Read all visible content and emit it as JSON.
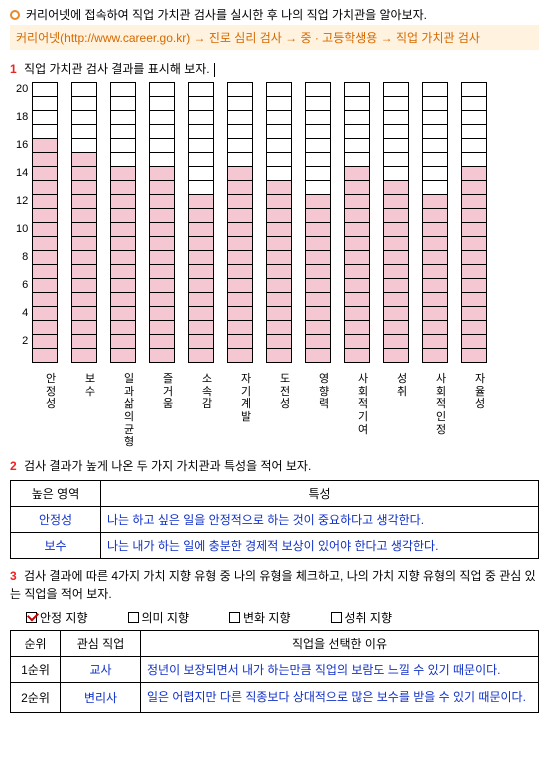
{
  "header": {
    "line1": "커리어넷에 접속하여 직업 가치관 검사를 실시한 후 나의 직업 가치관을 알아보자.",
    "path": "커리어넷(http://www.career.go.kr) → 진로 심리 검사 → 중 · 고등학생용 → 직업 가치관 검사"
  },
  "section1": {
    "num": "1",
    "title": "직업 가치관 검사 결과를 표시해 보자."
  },
  "chart": {
    "type": "bar",
    "ymax": 20,
    "yticks": [
      "20",
      "18",
      "16",
      "14",
      "12",
      "10",
      "8",
      "6",
      "4",
      "2"
    ],
    "bar_fill_color": "#f5c7d3",
    "bar_border_color": "#000000",
    "bars": [
      {
        "label": "안정성",
        "value": 16
      },
      {
        "label": "보수",
        "value": 15
      },
      {
        "label": "일과  삶의  균형",
        "value": 14
      },
      {
        "label": "즐거움",
        "value": 14
      },
      {
        "label": "소속감",
        "value": 12
      },
      {
        "label": "자기계발",
        "value": 14
      },
      {
        "label": "도전성",
        "value": 13
      },
      {
        "label": "영향력",
        "value": 12
      },
      {
        "label": "사회적기여",
        "value": 14
      },
      {
        "label": "성취",
        "value": 13
      },
      {
        "label": "사회적인정",
        "value": 12
      },
      {
        "label": "자율성",
        "value": 14
      }
    ]
  },
  "section2": {
    "num": "2",
    "title": "검사 결과가 높게 나온 두 가지 가치관과 특성을 적어 보자.",
    "headers": {
      "c1": "높은 영역",
      "c2": "특성"
    },
    "rows": [
      {
        "c1": "안정성",
        "c2": "나는 하고 싶은 일을 안정적으로 하는 것이 중요하다고 생각한다."
      },
      {
        "c1": "보수",
        "c2": "나는 내가 하는 일에 충분한 경제적 보상이 있어야 한다고 생각한다."
      }
    ]
  },
  "section3": {
    "num": "3",
    "title": "검사 결과에 따른 4가지 가치 지향 유형 중 나의 유형을 체크하고, 나의 가치 지향 유형의 직업 중 관심 있는 직업을 적어 보자.",
    "options": [
      {
        "label": "안정 지향",
        "checked": true
      },
      {
        "label": "의미 지향",
        "checked": false
      },
      {
        "label": "변화 지향",
        "checked": false
      },
      {
        "label": "성취 지향",
        "checked": false
      }
    ],
    "headers": {
      "c1": "순위",
      "c2": "관심 직업",
      "c3": "직업을 선택한 이유"
    },
    "rows": [
      {
        "c1": "1순위",
        "c2": "교사",
        "c3": "정년이 보장되면서 내가 하는만큼 직업의 보람도 느낄 수 있기 때문이다."
      },
      {
        "c1": "2순위",
        "c2": "변리사",
        "c3": "일은 어렵지만 다른 직종보다 상대적으로 많은 보수를 받을 수 있기 때문이다."
      }
    ]
  }
}
